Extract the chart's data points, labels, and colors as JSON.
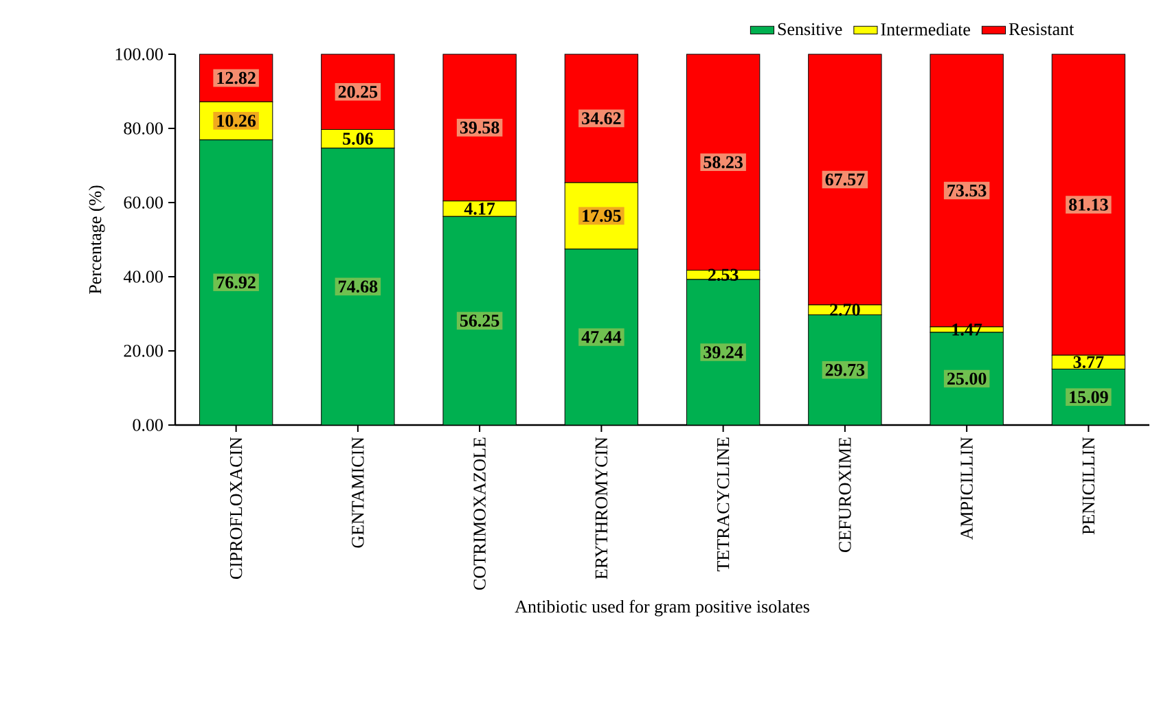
{
  "chart_data": {
    "type": "bar",
    "stacked": true,
    "xlabel": "Antibiotic used for gram positive isolates",
    "ylabel": "Percentage (%)",
    "categories": [
      "CIPROFLOXACIN",
      "GENTAMICIN",
      "COTRIMOXAZOLE",
      "ERYTHROMYCIN",
      "TETRACYCLINE",
      "CEFUROXIME",
      "AMPICILLIN",
      "PENICILLIN"
    ],
    "series": [
      {
        "name": "Sensitive",
        "color": "#00b050",
        "values": [
          76.92,
          74.68,
          56.25,
          47.44,
          39.24,
          29.73,
          25.0,
          15.09
        ],
        "value_labels": [
          "76.92",
          "74.68",
          "56.25",
          "47.44",
          "39.24",
          "29.73",
          "25.00",
          "15.09"
        ]
      },
      {
        "name": "Intermediate",
        "color": "#ffff00",
        "values": [
          10.26,
          5.06,
          4.17,
          17.95,
          2.53,
          2.7,
          1.47,
          3.77
        ],
        "value_labels": [
          "10.26",
          "5.06",
          "4.17",
          "17.95",
          "2.53",
          "2.70",
          "1.47",
          "3.77"
        ]
      },
      {
        "name": "Resistant",
        "color": "#ff0000",
        "values": [
          12.82,
          20.25,
          39.58,
          34.62,
          58.23,
          67.57,
          73.53,
          81.13
        ],
        "value_labels": [
          "12.82",
          "20.25",
          "39.58",
          "34.62",
          "58.23",
          "67.57",
          "73.53",
          "81.13"
        ]
      }
    ],
    "ylim": [
      0,
      100
    ],
    "yticks": [
      {
        "value": 0,
        "label": "0.00"
      },
      {
        "value": 20,
        "label": "20.00"
      },
      {
        "value": 40,
        "label": "40.00"
      },
      {
        "value": 60,
        "label": "60.00"
      },
      {
        "value": 80,
        "label": "80.00"
      },
      {
        "value": 100,
        "label": "100.00"
      }
    ],
    "legend": "top right"
  }
}
